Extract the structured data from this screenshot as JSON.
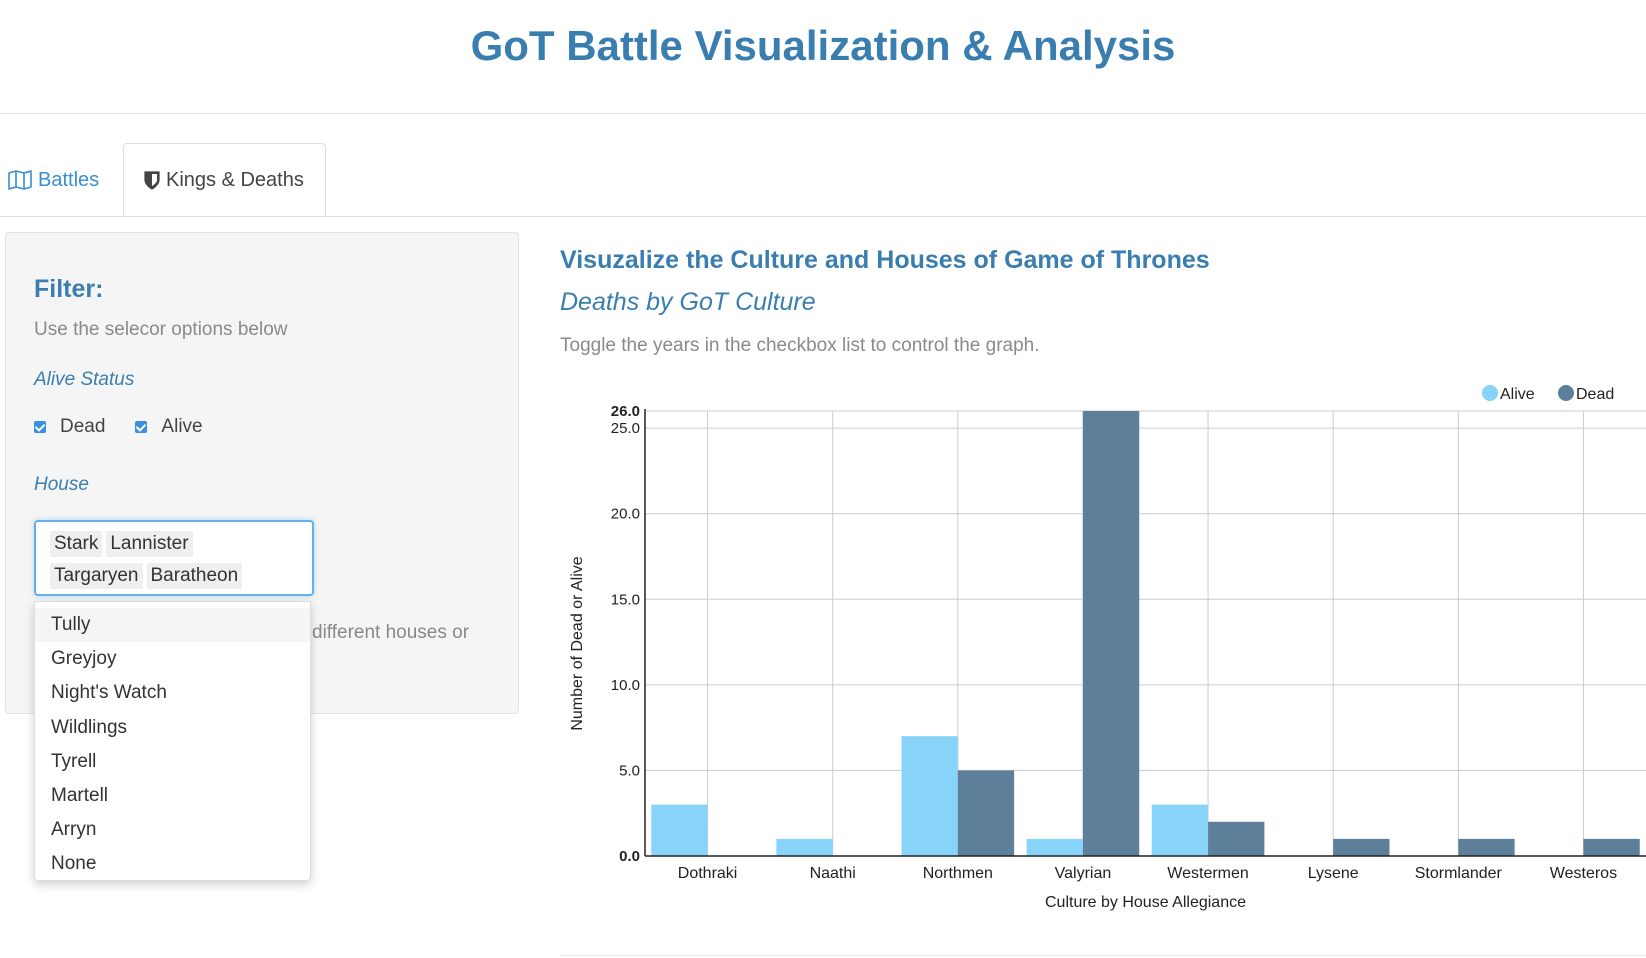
{
  "header": {
    "title": "GoT Battle Visualization & Analysis"
  },
  "tabs": [
    {
      "label": "Battles",
      "icon": "map-icon"
    },
    {
      "label": "Kings & Deaths",
      "icon": "shield-icon"
    }
  ],
  "sidebar": {
    "title": "Filter:",
    "help": "Use the selecor options below",
    "alive_status_label": "Alive Status",
    "checkboxes": [
      {
        "label": "Dead",
        "checked": true
      },
      {
        "label": "Alive",
        "checked": true
      }
    ],
    "house_label": "House",
    "selected_houses": [
      "Stark",
      "Lannister",
      "Targaryen",
      "Baratheon"
    ],
    "partial_text": "different houses or",
    "dropdown_options": [
      "Tully",
      "Greyjoy",
      "Night's Watch",
      "Wildlings",
      "Tyrell",
      "Martell",
      "Arryn",
      "None"
    ]
  },
  "main": {
    "heading": "Visuzalize the Culture and Houses of Game of Thrones",
    "subheading": "Deaths by GoT Culture",
    "help": "Toggle the years in the checkbox list to control the graph."
  },
  "colors": {
    "alive": "#87d3fa",
    "dead": "#5d7f99",
    "accent": "#3a7eb0"
  },
  "chart_data": {
    "type": "bar",
    "categories": [
      "Dothraki",
      "Naathi",
      "Northmen",
      "Valyrian",
      "Westermen",
      "Lysene",
      "Stormlander",
      "Westeros"
    ],
    "series": [
      {
        "name": "Alive",
        "values": [
          3,
          1,
          7,
          1,
          3,
          0,
          0,
          0
        ]
      },
      {
        "name": "Dead",
        "values": [
          0,
          0,
          5,
          26,
          2,
          1,
          1,
          1
        ]
      }
    ],
    "xlabel": "Culture by House Allegiance",
    "ylabel": "Number of Dead or Alive",
    "ylim": [
      0,
      26
    ],
    "yticks": [
      "0.0",
      "5.0",
      "10.0",
      "15.0",
      "20.0",
      "25.0",
      "26.0"
    ],
    "grid": true,
    "legend_position": "top-right"
  }
}
